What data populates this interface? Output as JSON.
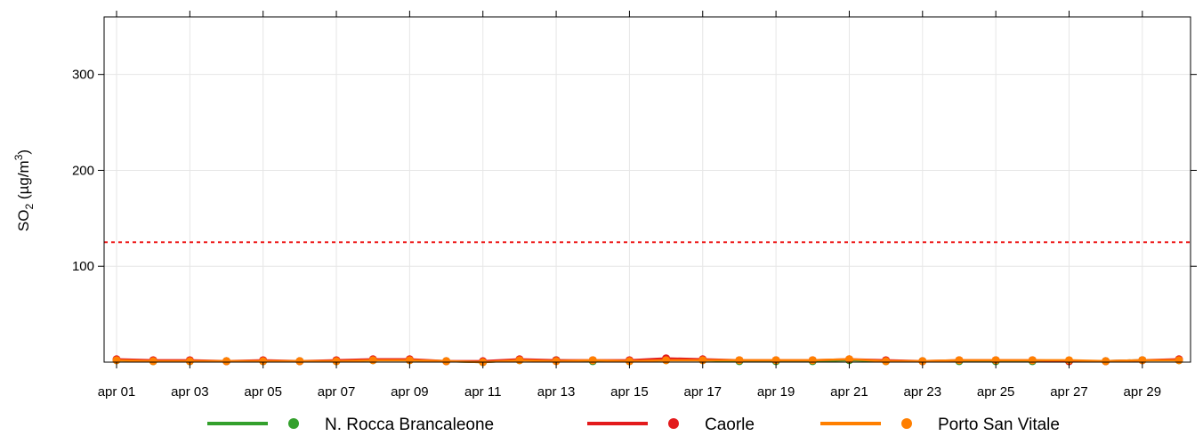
{
  "chart_data": {
    "type": "line",
    "title": "",
    "xlabel": "",
    "ylabel": {
      "prefix": "SO",
      "sub": "2",
      "middle": " (µg/m",
      "sup": "3",
      "suffix": ")"
    },
    "x": [
      "apr 01",
      "apr 02",
      "apr 03",
      "apr 04",
      "apr 05",
      "apr 06",
      "apr 07",
      "apr 08",
      "apr 09",
      "apr 10",
      "apr 11",
      "apr 12",
      "apr 13",
      "apr 14",
      "apr 15",
      "apr 16",
      "apr 17",
      "apr 18",
      "apr 19",
      "apr 20",
      "apr 21",
      "apr 22",
      "apr 23",
      "apr 24",
      "apr 25",
      "apr 26",
      "apr 27",
      "apr 28",
      "apr 29",
      "apr 30"
    ],
    "x_tick_labels": [
      "apr 01",
      "apr 03",
      "apr 05",
      "apr 07",
      "apr 09",
      "apr 11",
      "apr 13",
      "apr 15",
      "apr 17",
      "apr 19",
      "apr 21",
      "apr 23",
      "apr 25",
      "apr 27",
      "apr 29"
    ],
    "ylim": [
      0,
      360
    ],
    "y_ticks": [
      100,
      200,
      300
    ],
    "grid": true,
    "legend_position": "bottom",
    "threshold": {
      "value": 125,
      "color": "#ee1c1c",
      "style": "dotted"
    },
    "series": [
      {
        "name": "N. Rocca Brancaleone",
        "color": "#33a02c",
        "values": [
          2,
          1,
          1,
          1,
          1,
          1,
          1,
          2,
          2,
          1,
          0,
          2,
          2,
          1,
          1,
          2,
          2,
          1,
          1,
          1,
          2,
          1,
          1,
          1,
          1,
          1,
          1,
          1,
          2,
          2
        ]
      },
      {
        "name": "Caorle",
        "color": "#e31a1c",
        "values": [
          3,
          2,
          2,
          1,
          2,
          1,
          2,
          3,
          3,
          1,
          1,
          3,
          2,
          2,
          2,
          4,
          3,
          2,
          2,
          2,
          3,
          2,
          1,
          2,
          2,
          2,
          1,
          1,
          2,
          3
        ]
      },
      {
        "name": "Porto San Vitale",
        "color": "#ff7f00",
        "values": [
          2,
          1,
          1,
          1,
          1,
          1,
          1,
          2,
          2,
          1,
          0,
          2,
          1,
          2,
          1,
          2,
          2,
          2,
          2,
          2,
          3,
          1,
          1,
          2,
          2,
          2,
          2,
          1,
          2,
          2
        ]
      }
    ]
  }
}
